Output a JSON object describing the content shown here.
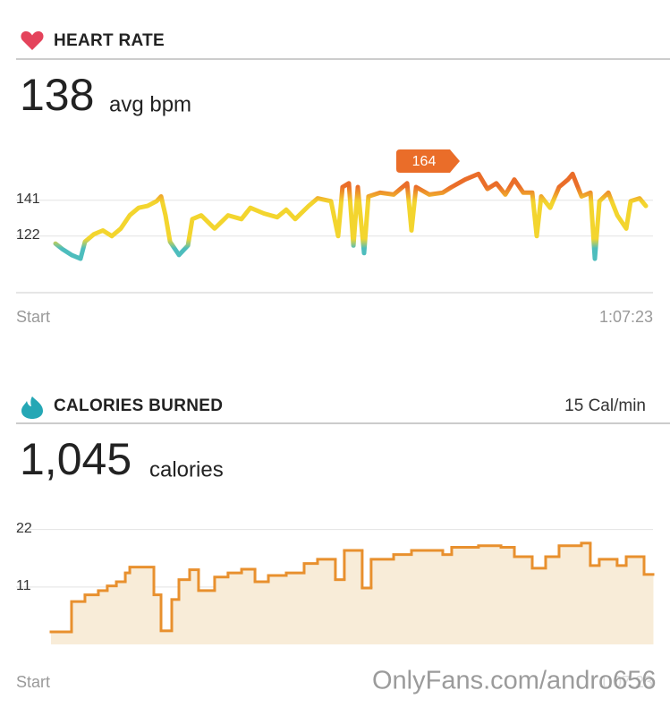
{
  "chart_data": [
    {
      "type": "line",
      "title": "HEART RATE",
      "summary": 138,
      "summary_unit": "avg bpm",
      "annotation": 164,
      "x": [
        0,
        49,
        110,
        171,
        201,
        262,
        323,
        384,
        445,
        506,
        567,
        628,
        689,
        720,
        750,
        781,
        842,
        903,
        933,
        994,
        1085,
        1177,
        1268,
        1329,
        1421,
        1512,
        1573,
        1634,
        1726,
        1787,
        1878,
        1927,
        1957,
        2000,
        2031,
        2061,
        2104,
        2134,
        2214,
        2305,
        2397,
        2427,
        2458,
        2549,
        2640,
        2701,
        2793,
        2884,
        2945,
        3006,
        3067,
        3128,
        3189,
        3250,
        3281,
        3311,
        3372,
        3433,
        3494,
        3525,
        3586,
        3647,
        3677,
        3708,
        3769,
        3830,
        3891,
        3921,
        3982,
        4025
      ],
      "values": [
        118,
        115,
        112,
        110,
        119,
        123,
        125,
        122,
        126,
        133,
        137,
        138,
        140.5,
        143,
        133,
        119,
        112,
        117,
        131,
        133,
        126,
        133,
        131,
        137,
        134,
        132,
        136,
        131,
        138,
        142,
        140.5,
        122,
        148,
        150,
        117,
        148,
        113,
        143,
        145,
        144,
        150,
        125,
        148,
        144,
        145,
        148,
        152,
        155,
        147,
        150,
        144,
        152,
        145,
        145,
        122,
        143,
        137,
        148,
        152,
        155,
        143,
        145,
        110,
        140.5,
        145,
        133,
        126,
        140.5,
        142,
        138
      ],
      "colors": [
        "#ea6d29",
        "#f3d52e",
        "#4dbdbd"
      ],
      "xlim": [
        0,
        4043
      ],
      "xticks": [
        {
          "value": 0,
          "label": "Start"
        },
        {
          "value": 4043,
          "label": "1:07:23"
        }
      ],
      "ylim": [
        92,
        176
      ],
      "yticks": [
        122,
        141
      ],
      "grid": true
    },
    {
      "type": "step",
      "title": "CALORIES BURNED",
      "rate": "15 Cal/min",
      "summary": {
        "value": 1045,
        "label": "1,045"
      },
      "summary_unit": "calories",
      "x": [
        0,
        138,
        228,
        318,
        378,
        439,
        499,
        529,
        691,
        739,
        811,
        859,
        931,
        991,
        1099,
        1189,
        1280,
        1370,
        1460,
        1580,
        1700,
        1790,
        1910,
        1970,
        2090,
        2150,
        2301,
        2421,
        2631,
        2691,
        2871,
        3022,
        3112,
        3232,
        3322,
        3412,
        3562,
        3622,
        3682,
        3802,
        3863,
        3983
      ],
      "values": [
        2.4,
        8.2,
        9.5,
        10.3,
        11.2,
        12,
        13.7,
        14.8,
        9.5,
        2.6,
        8.6,
        12.4,
        14.3,
        10.3,
        12.9,
        13.7,
        14.4,
        12,
        13.2,
        13.7,
        15.5,
        16.3,
        12.4,
        18,
        10.8,
        16.3,
        17.2,
        18,
        17.2,
        18.6,
        18.9,
        18.6,
        16.8,
        14.6,
        16.8,
        18.9,
        19.4,
        15.1,
        16.3,
        15.1,
        16.8,
        13.4
      ],
      "color": "#e8902e",
      "fill_color": "#f8ecd8",
      "xlim": [
        0,
        4043
      ],
      "xticks": [
        {
          "value": 0,
          "label": "Start"
        },
        {
          "value": 4043,
          "label": "1:07:23"
        }
      ],
      "ylim": [
        0,
        24
      ],
      "yticks": [
        11,
        22
      ],
      "grid": true
    }
  ],
  "watermark": "OnlyFans.com/andro656"
}
